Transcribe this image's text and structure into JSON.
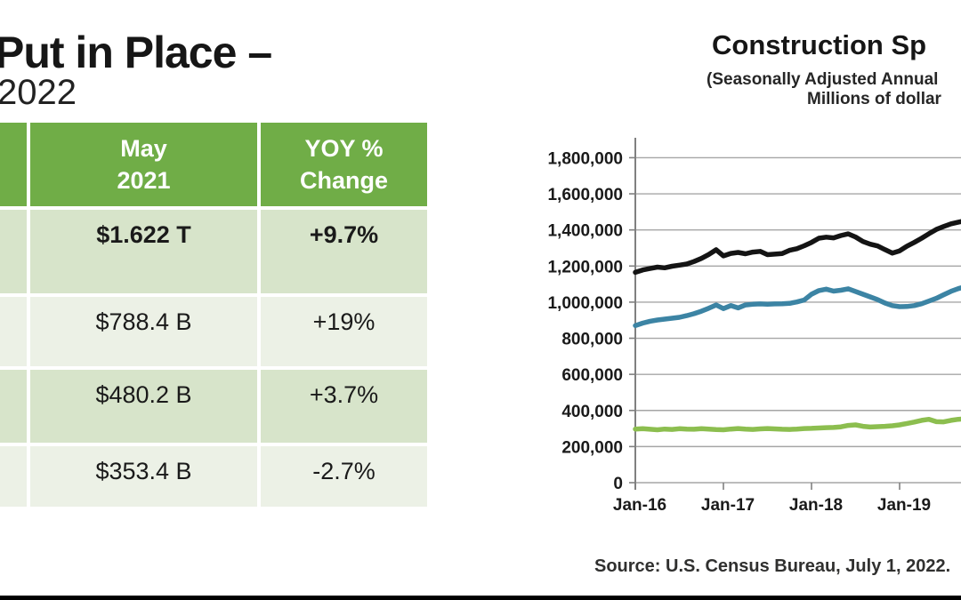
{
  "slide": {
    "title_line1": "Put in Place –",
    "title_line2": "2022"
  },
  "table": {
    "header": {
      "may_col": {
        "line1": "May",
        "line2": "2021"
      },
      "yoy_col": {
        "line1": "YOY %",
        "line2": "Change"
      }
    },
    "rows": [
      {
        "value": "$1.622 T",
        "yoy": "+9.7%"
      },
      {
        "value": "$788.4 B",
        "yoy": "+19%"
      },
      {
        "value": "$480.2 B",
        "yoy": "+3.7%"
      },
      {
        "value": "$353.4 B",
        "yoy": "-2.7%"
      }
    ],
    "colors": {
      "header_bg": "#70ad47",
      "header_text": "#ffffff",
      "row_shaded": "#d7e4ca",
      "row_light": "#ecf1e6"
    }
  },
  "chart_data": {
    "type": "line",
    "title": "Construction Sp",
    "subtitle_line1": "(Seasonally Adjusted Annual",
    "subtitle_line2": "Millions of dollar",
    "source": "Source: U.S. Census Bureau, July 1, 2022.",
    "xlabel": "",
    "ylabel": "",
    "grid": true,
    "legend": "none visible (cut off at right edge)",
    "ylim": [
      0,
      1800000
    ],
    "y_tick_step": 200000,
    "y_tick_labels": [
      "0",
      "200,000",
      "400,000",
      "600,000",
      "800,000",
      "1,000,000",
      "1,200,000",
      "1,400,000",
      "1,600,000",
      "1,800,000"
    ],
    "x_start_label": "Jan-16",
    "x_interval": "monthly",
    "x_tick_labels": [
      "Jan-16",
      "Jan-17",
      "Jan-18",
      "Jan-19"
    ],
    "series": [
      {
        "name": "black-line",
        "color": "#141414",
        "values": [
          1165000,
          1178000,
          1186000,
          1194000,
          1190000,
          1199000,
          1205000,
          1211000,
          1225000,
          1242000,
          1264000,
          1290000,
          1256000,
          1270000,
          1275000,
          1268000,
          1277000,
          1281000,
          1263000,
          1266000,
          1269000,
          1287000,
          1296000,
          1312000,
          1331000,
          1354000,
          1360000,
          1356000,
          1369000,
          1378000,
          1361000,
          1336000,
          1321000,
          1311000,
          1291000,
          1272000,
          1284000,
          1310000,
          1331000,
          1354000,
          1379000,
          1403000,
          1419000,
          1434000,
          1443000,
          1451000
        ]
      },
      {
        "name": "blue-line",
        "color": "#3c84a4",
        "values": [
          870000,
          884000,
          894000,
          901000,
          906000,
          911000,
          916000,
          925000,
          936000,
          950000,
          966000,
          984000,
          964000,
          981000,
          968000,
          984000,
          988000,
          990000,
          988000,
          990000,
          991000,
          993000,
          1001000,
          1012000,
          1044000,
          1064000,
          1072000,
          1061000,
          1066000,
          1074000,
          1059000,
          1044000,
          1029000,
          1014000,
          995000,
          981000,
          975000,
          976000,
          981000,
          991000,
          1006000,
          1021000,
          1041000,
          1060000,
          1075000,
          1086000
        ]
      },
      {
        "name": "green-line",
        "color": "#8cbe4f",
        "values": [
          297000,
          299000,
          296000,
          293000,
          297000,
          295000,
          299000,
          297000,
          296000,
          299000,
          297000,
          294000,
          293000,
          297000,
          300000,
          297000,
          295000,
          298000,
          300000,
          298000,
          296000,
          295000,
          297000,
          300000,
          301000,
          303000,
          305000,
          306000,
          309000,
          317000,
          320000,
          312000,
          308000,
          310000,
          312000,
          315000,
          320000,
          328000,
          336000,
          345000,
          351000,
          338000,
          337000,
          345000,
          351000,
          353000
        ]
      }
    ]
  }
}
